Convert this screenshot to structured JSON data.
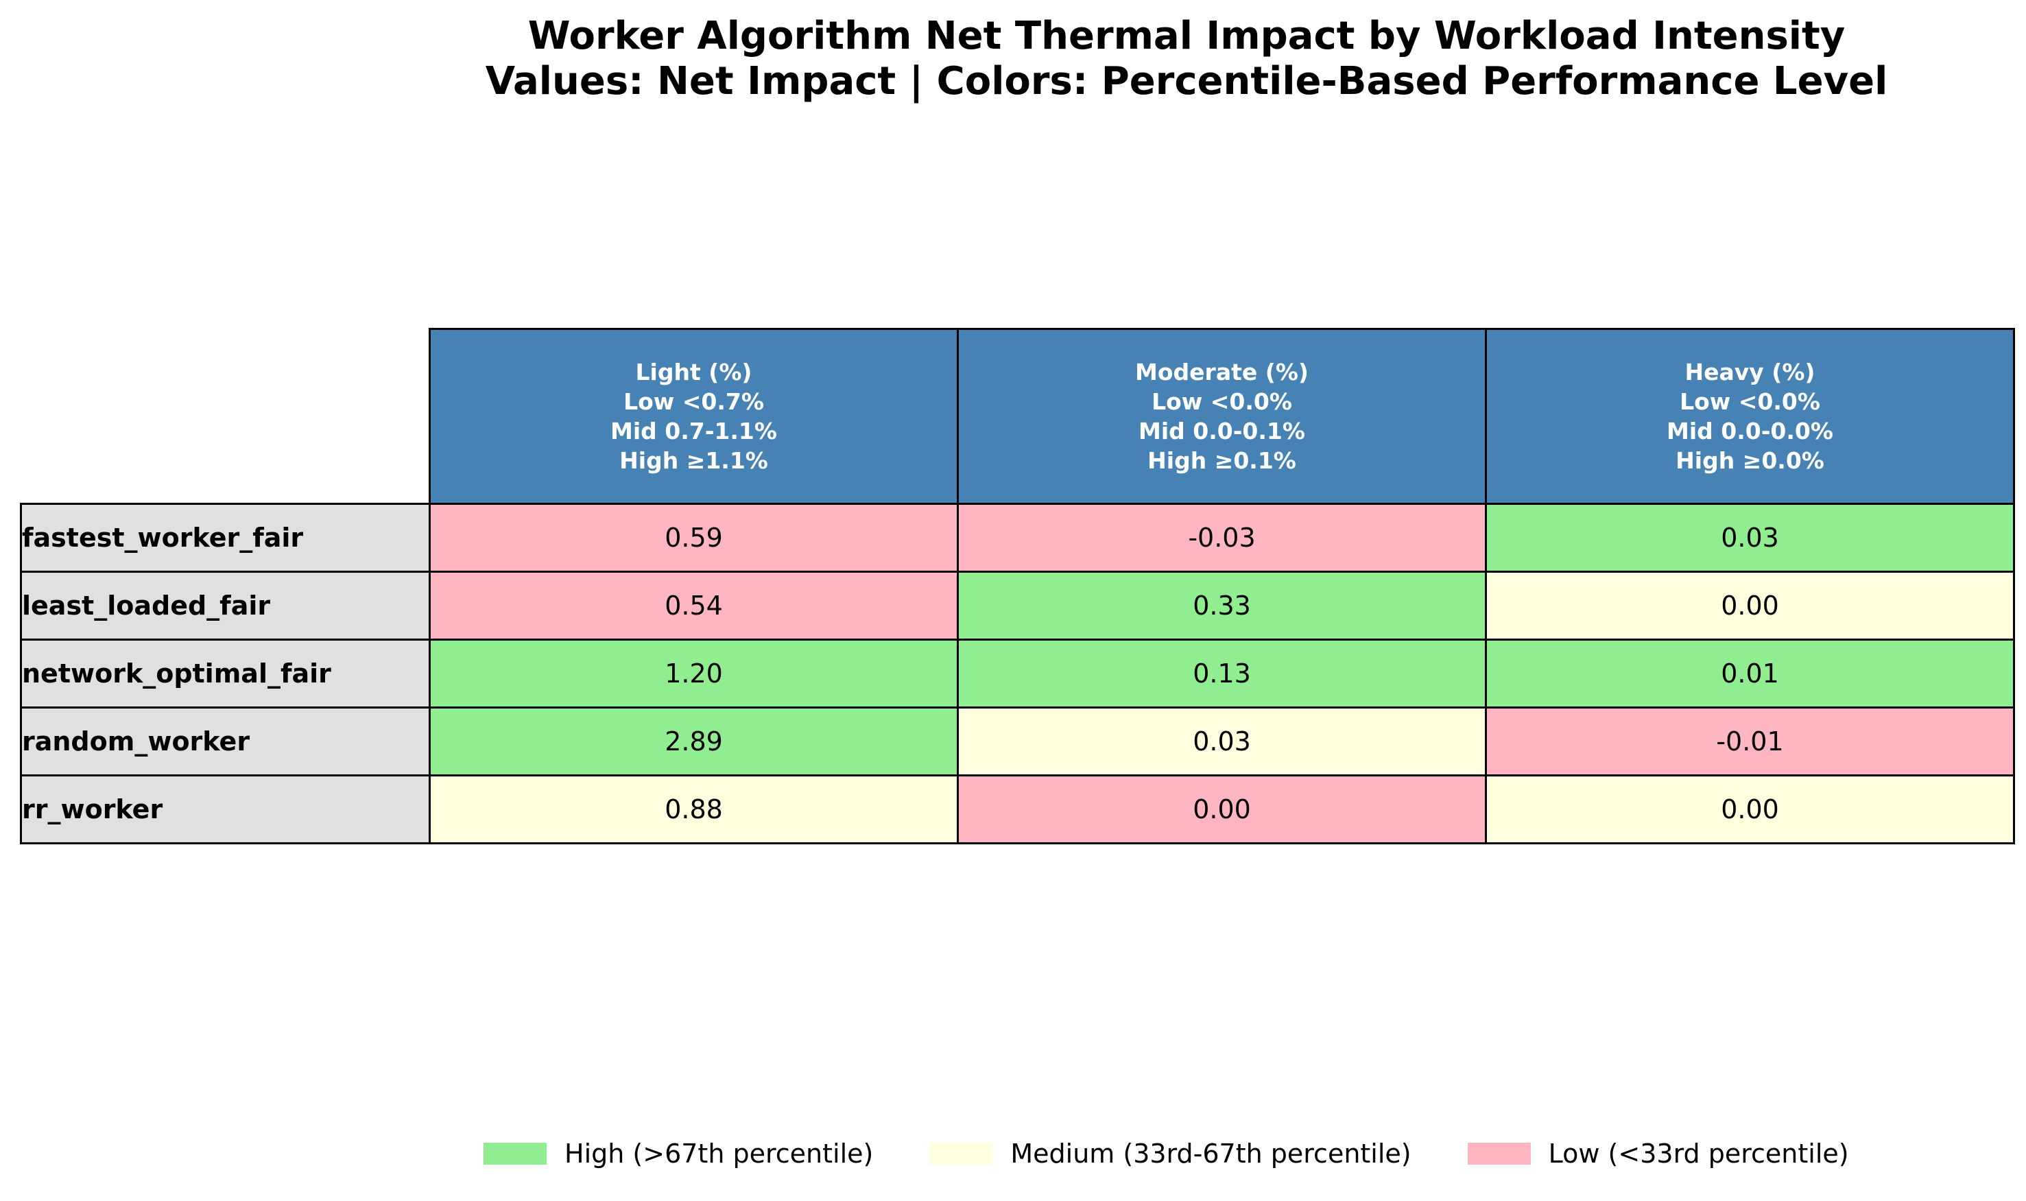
{
  "chart_data": {
    "type": "table",
    "title": "Worker Algorithm Net Thermal Impact by Workload Intensity",
    "subtitle": "Values: Net Impact | Colors: Percentile-Based Performance Level",
    "columns": [
      {
        "label": "Light (%)",
        "low": "Low <0.7%",
        "mid": "Mid 0.7-1.1%",
        "high": "High ≥1.1%"
      },
      {
        "label": "Moderate (%)",
        "low": "Low <0.0%",
        "mid": "Mid 0.0-0.1%",
        "high": "High ≥0.1%"
      },
      {
        "label": "Heavy (%)",
        "low": "Low <0.0%",
        "mid": "Mid 0.0-0.0%",
        "high": "High ≥0.0%"
      }
    ],
    "rows": [
      {
        "label": "fastest_worker_fair",
        "values": [
          "0.59",
          "-0.03",
          "0.03"
        ],
        "levels": [
          "low",
          "low",
          "high"
        ]
      },
      {
        "label": "least_loaded_fair",
        "values": [
          "0.54",
          "0.33",
          "0.00"
        ],
        "levels": [
          "low",
          "high",
          "medium"
        ]
      },
      {
        "label": "network_optimal_fair",
        "values": [
          "1.20",
          "0.13",
          "0.01"
        ],
        "levels": [
          "high",
          "high",
          "high"
        ]
      },
      {
        "label": "random_worker",
        "values": [
          "2.89",
          "0.03",
          "-0.01"
        ],
        "levels": [
          "high",
          "medium",
          "low"
        ]
      },
      {
        "label": "rr_worker",
        "values": [
          "0.88",
          "0.00",
          "0.00"
        ],
        "levels": [
          "medium",
          "low",
          "medium"
        ]
      }
    ],
    "legend": [
      {
        "level": "high",
        "label": "High (>67th percentile)",
        "color": "#90ee90"
      },
      {
        "level": "medium",
        "label": "Medium (33rd-67th percentile)",
        "color": "#ffffe0"
      },
      {
        "level": "low",
        "label": "Low (<33rd percentile)",
        "color": "#ffb6c1"
      }
    ],
    "legend_position": "bottom-right",
    "header_color": "#4682b4",
    "row_header_color": "#e0e0e0"
  }
}
